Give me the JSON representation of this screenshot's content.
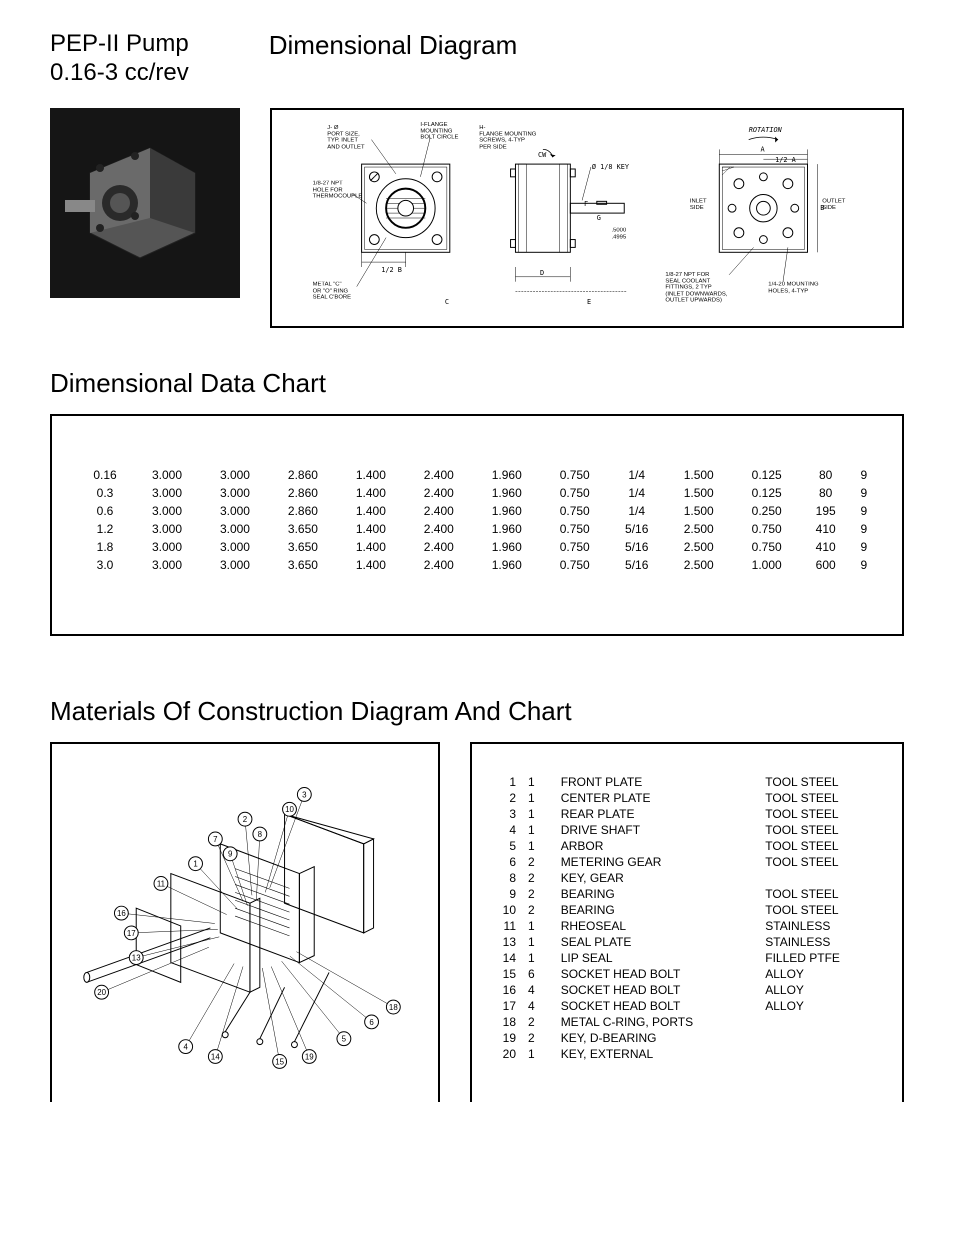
{
  "header": {
    "title_line1": "PEP-II  Pump",
    "title_line2": "0.16-3 cc/rev",
    "subtitle": "Dimensional Diagram"
  },
  "diagram_labels": {
    "port_size": "J- Ø\nPORT SIZE,\nTYP. INLET\nAND OUTLET",
    "flange_circle": "I-FLANGE\nMOUNTING\nBOLT CIRCLE",
    "flange_screws": "H-\nFLANGE MOUNTING\nSCREWS, 4-TYP\nPER SIDE",
    "thermocouple": "1/8-27 NPT\nHOLE FOR\nTHERMOCOUPLE",
    "half_b": "1/2 B",
    "metal_c": "METAL \"C\"\nOR \"O\" RING\nSEAL C'BORE",
    "cw": "CW",
    "key": "Ø 1/8 KEY",
    "shaft_dim": ".5000\n.4995",
    "rotation": "ROTATION",
    "half_a": "1/2 A",
    "inlet": "INLET\nSIDE",
    "outlet": "OUTLET\nSIDE",
    "npt_seal": "1/8-27 NPT FOR\nSEAL COOLANT\nFITTINGS, 2 TYP\n(INLET DOWNWARDS,\nOUTLET UPWARDS)",
    "mounting_holes": "1/4-20 MOUNTING\nHOLES, 4-TYP",
    "dim_c": "C",
    "dim_d": "D",
    "dim_e": "E",
    "dim_f": "F",
    "dim_g": "G",
    "dim_a": "A",
    "dim_b": "B"
  },
  "data_chart": {
    "title": "Dimensional Data Chart",
    "rows": [
      [
        "0.16",
        "3.000",
        "3.000",
        "2.860",
        "1.400",
        "2.400",
        "1.960",
        "0.750",
        "1/4",
        "1.500",
        "0.125",
        "80",
        "9"
      ],
      [
        "0.3",
        "3.000",
        "3.000",
        "2.860",
        "1.400",
        "2.400",
        "1.960",
        "0.750",
        "1/4",
        "1.500",
        "0.125",
        "80",
        "9"
      ],
      [
        "0.6",
        "3.000",
        "3.000",
        "2.860",
        "1.400",
        "2.400",
        "1.960",
        "0.750",
        "1/4",
        "1.500",
        "0.250",
        "195",
        "9"
      ],
      [
        "1.2",
        "3.000",
        "3.000",
        "3.650",
        "1.400",
        "2.400",
        "1.960",
        "0.750",
        "5/16",
        "2.500",
        "0.750",
        "410",
        "9"
      ],
      [
        "1.8",
        "3.000",
        "3.000",
        "3.650",
        "1.400",
        "2.400",
        "1.960",
        "0.750",
        "5/16",
        "2.500",
        "0.750",
        "410",
        "9"
      ],
      [
        "3.0",
        "3.000",
        "3.000",
        "3.650",
        "1.400",
        "2.400",
        "1.960",
        "0.750",
        "5/16",
        "2.500",
        "1.000",
        "600",
        "9"
      ]
    ]
  },
  "materials": {
    "title": "Materials Of Construction Diagram And Chart",
    "callouts": [
      "1",
      "2",
      "3",
      "4",
      "5",
      "6",
      "7",
      "8",
      "9",
      "10",
      "11",
      "13",
      "14",
      "15",
      "16",
      "17",
      "18",
      "19",
      "20"
    ],
    "rows": [
      [
        "1",
        "1",
        "FRONT PLATE",
        "TOOL STEEL"
      ],
      [
        "2",
        "1",
        "CENTER PLATE",
        "TOOL STEEL"
      ],
      [
        "3",
        "1",
        "REAR PLATE",
        "TOOL STEEL"
      ],
      [
        "4",
        "1",
        "DRIVE SHAFT",
        "TOOL STEEL"
      ],
      [
        "5",
        "1",
        "ARBOR",
        "TOOL STEEL"
      ],
      [
        "6",
        "2",
        "METERING GEAR",
        "TOOL STEEL"
      ],
      [
        "8",
        "2",
        "KEY, GEAR",
        ""
      ],
      [
        "9",
        "2",
        "BEARING",
        "TOOL STEEL"
      ],
      [
        "10",
        "2",
        "BEARING",
        "TOOL STEEL"
      ],
      [
        "11",
        "1",
        "RHEOSEAL",
        "STAINLESS"
      ],
      [
        "13",
        "1",
        "SEAL PLATE",
        "STAINLESS"
      ],
      [
        "14",
        "1",
        "LIP SEAL",
        "FILLED PTFE"
      ],
      [
        "15",
        "6",
        "SOCKET HEAD BOLT",
        "ALLOY"
      ],
      [
        "16",
        "4",
        "SOCKET HEAD BOLT",
        "ALLOY"
      ],
      [
        "17",
        "4",
        "SOCKET HEAD BOLT",
        "ALLOY"
      ],
      [
        "18",
        "2",
        "METAL C-RING, PORTS",
        ""
      ],
      [
        "19",
        "2",
        "KEY, D-BEARING",
        ""
      ],
      [
        "20",
        "1",
        "KEY, EXTERNAL",
        ""
      ]
    ]
  },
  "colors": {
    "text": "#000000",
    "bg": "#ffffff",
    "photo_bg": "#1a1a1a",
    "pump_body": "#6a6a6a",
    "pump_dark": "#2a2a2a"
  }
}
